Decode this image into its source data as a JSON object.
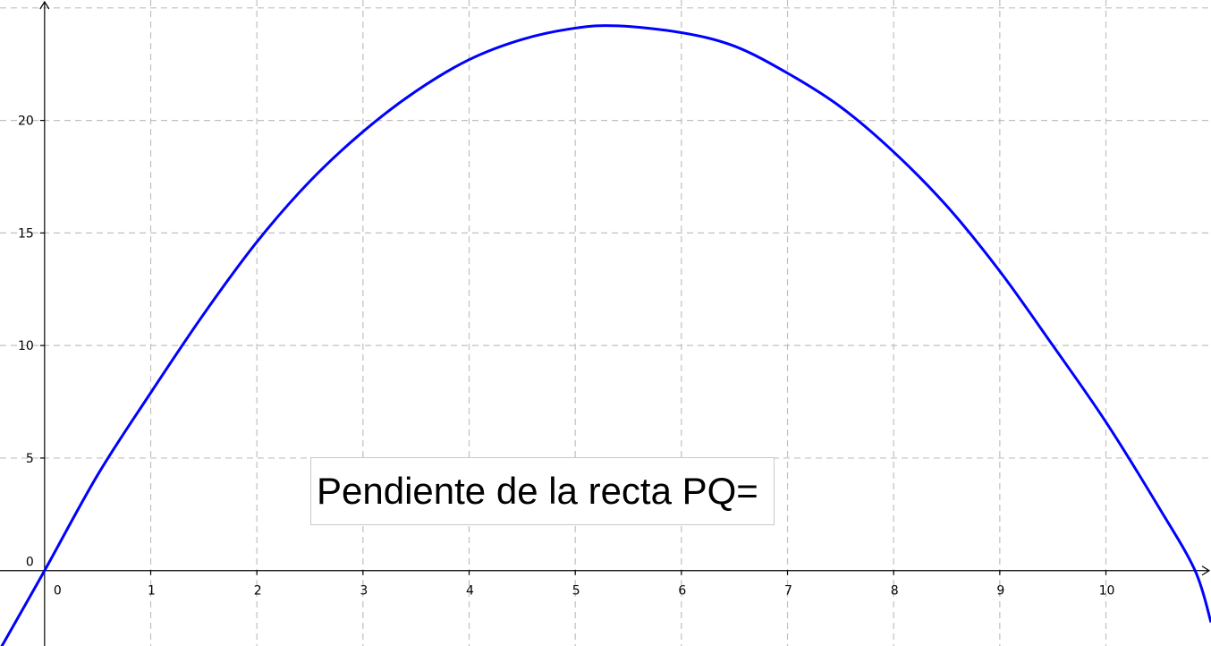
{
  "chart_data": {
    "type": "line",
    "title": "",
    "xlabel": "",
    "ylabel": "",
    "xlim": [
      -0.42,
      10.99
    ],
    "ylim": [
      -3.35,
      25.35
    ],
    "grid": true,
    "x_ticks": [
      0,
      1,
      2,
      3,
      4,
      5,
      6,
      7,
      8,
      9,
      10
    ],
    "y_ticks": [
      0,
      5,
      10,
      15,
      20
    ],
    "series": [
      {
        "color": "#0000ff",
        "x": [
          -0.42,
          0,
          0.5,
          1,
          1.5,
          2,
          2.5,
          3,
          3.5,
          4,
          4.5,
          5,
          5.4,
          6,
          6.5,
          7,
          7.5,
          8,
          8.5,
          9,
          9.5,
          10,
          10.5,
          10.84,
          10.99
        ],
        "y": [
          -3.5,
          0,
          4.25,
          7.9,
          11.4,
          14.6,
          17.3,
          19.5,
          21.3,
          22.7,
          23.6,
          24.1,
          24.2,
          23.9,
          23.3,
          22.1,
          20.6,
          18.6,
          16.2,
          13.3,
          10.0,
          6.6,
          2.8,
          0,
          -2.3
        ]
      }
    ]
  },
  "textbox": {
    "label": "Pendiente de la recta PQ="
  }
}
